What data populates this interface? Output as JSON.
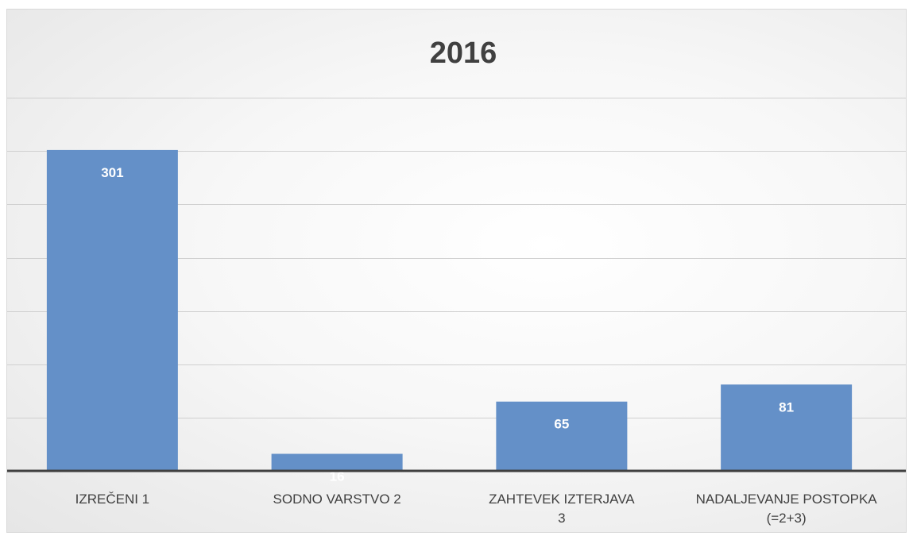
{
  "chart_data": {
    "type": "bar",
    "title": "2016",
    "categories": [
      "IZREČENI  1",
      "SODNO VARSTVO 2",
      "ZAHTEVEK IZTERJAVA 3",
      "NADALJEVANJE POSTOPKA (=2+3)"
    ],
    "category_lines": [
      [
        "IZREČENI  1"
      ],
      [
        "SODNO VARSTVO 2"
      ],
      [
        "ZAHTEVEK IZTERJAVA",
        "3"
      ],
      [
        "NADALJEVANJE POSTOPKA",
        "(=2+3)"
      ]
    ],
    "values": [
      301,
      16,
      65,
      81
    ],
    "data_labels": [
      "301",
      "16",
      "65",
      "81"
    ],
    "ylim": [
      0,
      350
    ],
    "y_grid_step": 50,
    "grid": true,
    "y_tick_labels_visible": false,
    "legend": "none",
    "bar_color": "#6490c8"
  }
}
